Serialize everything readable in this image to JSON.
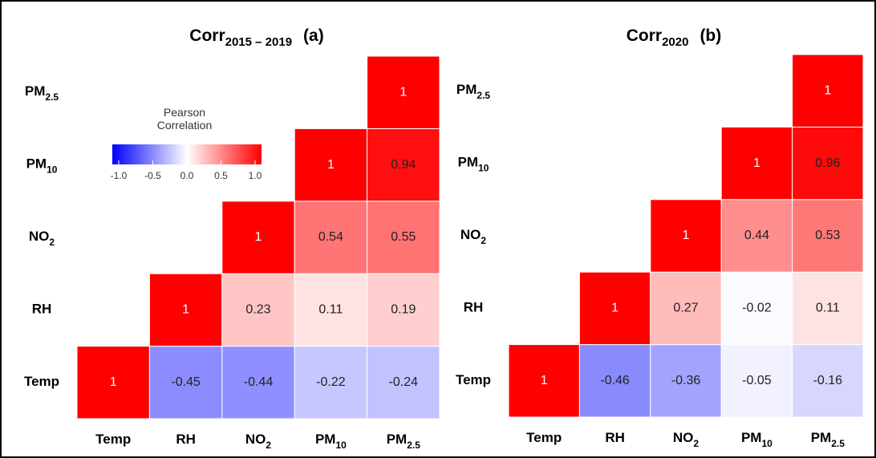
{
  "chart_data": [
    {
      "type": "heatmap",
      "title": {
        "text": "Corr",
        "sub": "2015 – 2019",
        "tag": "(a)"
      },
      "categories": [
        {
          "text": "Temp"
        },
        {
          "text": "RH"
        },
        {
          "text": "NO",
          "sub": "2"
        },
        {
          "text": "PM",
          "sub": "10"
        },
        {
          "text": "PM",
          "sub": "2.5"
        }
      ],
      "matrix": [
        [
          1,
          -0.45,
          -0.44,
          -0.22,
          -0.24
        ],
        [
          null,
          1,
          0.23,
          0.11,
          0.19
        ],
        [
          null,
          null,
          1,
          0.54,
          0.55
        ],
        [
          null,
          null,
          null,
          1,
          0.94
        ],
        [
          null,
          null,
          null,
          null,
          1
        ]
      ],
      "zlim": [
        -1,
        1
      ],
      "colors": [
        "#0000ff",
        "#ffffff",
        "#ff0000"
      ],
      "legend": {
        "title": "Pearson Correlation",
        "ticks": [
          {
            "value": -1,
            "label": "-1.0"
          },
          {
            "value": -0.5,
            "label": "-0.5"
          },
          {
            "value": 0,
            "label": "0.0"
          },
          {
            "value": 0.5,
            "label": "0.5"
          },
          {
            "value": 1,
            "label": "1.0"
          }
        ]
      }
    },
    {
      "type": "heatmap",
      "title": {
        "text": "Corr",
        "sub": "2020",
        "tag": "(b)"
      },
      "categories": [
        {
          "text": "Temp"
        },
        {
          "text": "RH"
        },
        {
          "text": "NO",
          "sub": "2"
        },
        {
          "text": "PM",
          "sub": "10"
        },
        {
          "text": "PM",
          "sub": "2.5"
        }
      ],
      "matrix": [
        [
          1,
          -0.46,
          -0.36,
          -0.05,
          -0.16
        ],
        [
          null,
          1,
          0.27,
          -0.02,
          0.11
        ],
        [
          null,
          null,
          1,
          0.44,
          0.53
        ],
        [
          null,
          null,
          null,
          1,
          0.96
        ],
        [
          null,
          null,
          null,
          null,
          1
        ]
      ],
      "zlim": [
        -1,
        1
      ],
      "colors": [
        "#0000ff",
        "#ffffff",
        "#ff0000"
      ]
    }
  ]
}
